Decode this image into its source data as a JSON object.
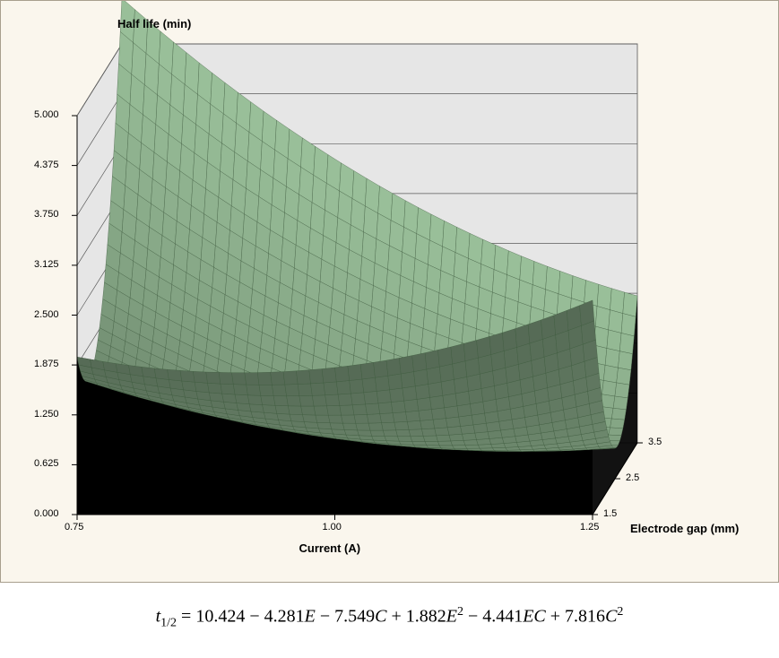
{
  "chart": {
    "type": "3d-surface",
    "background_color": "#faf6ed",
    "panel_fill": "#e6e6e6",
    "panel_stroke": "#757575",
    "grid_color": "#595959",
    "tick_color": "#000000",
    "surface_top_color": "#9cc29c",
    "surface_mesh_color": "#3e5a3e",
    "surface_underside_color": "#000000",
    "title_fontsize": 13,
    "label_fontsize": 12,
    "tick_fontsize": 11,
    "z_axis": {
      "title": "Half life (min)",
      "min": 0.0,
      "max": 5.0,
      "tick_step": 0.625,
      "ticks": [
        "0.000",
        "0.625",
        "1.250",
        "1.875",
        "2.500",
        "3.125",
        "3.750",
        "4.375",
        "5.000"
      ]
    },
    "x_axis": {
      "title": "Current (A)",
      "min": 0.75,
      "max": 1.25,
      "ticks": [
        "0.75",
        "1.00",
        "1.25"
      ]
    },
    "y_axis": {
      "title": "Electrode gap (mm)",
      "min": 1.5,
      "max": 3.5,
      "ticks": [
        "1.5",
        "2.5",
        "3.5"
      ]
    },
    "surface_equation": {
      "constant": 10.424,
      "E_coeff": -4.281,
      "C_coeff": -7.549,
      "E2_coeff": 1.882,
      "EC_coeff": -4.441,
      "C2_coeff": 7.816
    },
    "mesh_nx": 40,
    "mesh_ny": 28
  },
  "equation_text": {
    "lhs_base": "t",
    "lhs_sub": "1/2",
    "eq": " = ",
    "t0": "10.424",
    "t1": " − 4.281",
    "t1v": "E",
    "t2": " − 7.549",
    "t2v": "C",
    "t3": " + 1.882",
    "t3v": "E",
    "t3p": "2",
    "t4": " − 4.441",
    "t4v": "EC",
    "t5": " + 7.816",
    "t5v": "C",
    "t5p": "2"
  }
}
